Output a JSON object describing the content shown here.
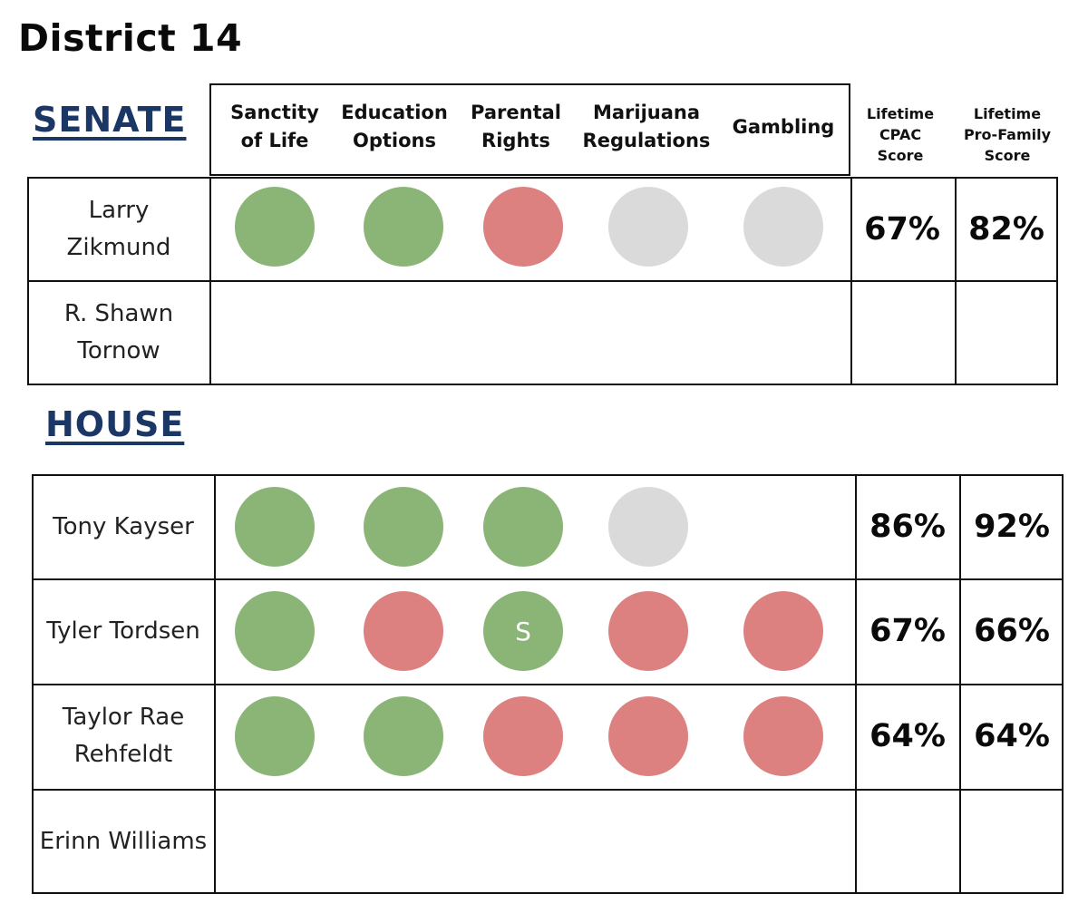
{
  "title": "District 14",
  "colors": {
    "navy": "#1b3766",
    "support": "#8ab577",
    "oppose": "#dc8080",
    "unknown": "#dadada"
  },
  "headers": {
    "issues": [
      "Sanctity of Life",
      "Education Options",
      "Parental Rights",
      "Marijuana Regulations",
      "Gambling"
    ],
    "cpac": "Lifetime CPAC Score",
    "profamily": "Lifetime Pro-Family Score"
  },
  "senate": {
    "label": "SENATE",
    "candidates": [
      {
        "name": "Larry Zikmund",
        "cpac": "67%",
        "profamily": "82%",
        "positions": [
          "support",
          "support",
          "oppose",
          "unknown",
          "unknown"
        ],
        "marks": [
          "",
          "",
          "",
          "",
          ""
        ]
      },
      {
        "name": "R. Shawn Tornow",
        "cpac": "",
        "profamily": "",
        "positions": [
          null,
          null,
          null,
          null,
          null
        ],
        "marks": [
          "",
          "",
          "",
          "",
          ""
        ]
      }
    ]
  },
  "house": {
    "label": "HOUSE",
    "candidates": [
      {
        "name": "Tony Kayser",
        "cpac": "86%",
        "profamily": "92%",
        "positions": [
          "support",
          "support",
          "support",
          "unknown",
          null
        ],
        "marks": [
          "",
          "",
          "",
          "",
          ""
        ]
      },
      {
        "name": "Tyler Tordsen",
        "cpac": "67%",
        "profamily": "66%",
        "positions": [
          "support",
          "oppose",
          "support",
          "oppose",
          "oppose"
        ],
        "marks": [
          "",
          "",
          "S",
          "",
          ""
        ]
      },
      {
        "name": "Taylor Rae Rehfeldt",
        "cpac": "64%",
        "profamily": "64%",
        "positions": [
          "support",
          "support",
          "oppose",
          "oppose",
          "oppose"
        ],
        "marks": [
          "",
          "",
          "",
          "",
          ""
        ]
      },
      {
        "name": "Erinn Williams",
        "cpac": "",
        "profamily": "",
        "positions": [
          null,
          null,
          null,
          null,
          null
        ],
        "marks": [
          "",
          "",
          "",
          "",
          ""
        ]
      }
    ]
  }
}
